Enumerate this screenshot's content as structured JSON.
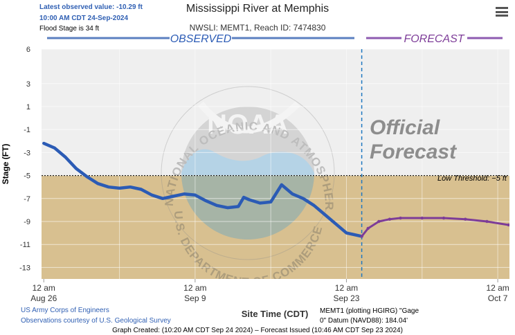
{
  "header": {
    "latest_value": "Latest observed value: -10.29 ft",
    "latest_time": "10:00 AM CDT 24-Sep-2024",
    "flood_stage": "Flood Stage is 34 ft",
    "title": "Mississippi River at Memphis",
    "subtitle": "NWSLI: MEMT1, Reach ID: 7474830"
  },
  "labels": {
    "observed": "OBSERVED",
    "forecast": "FORECAST",
    "official_forecast_1": "Official",
    "official_forecast_2": "Forecast",
    "low_threshold": "Low Threshold: −5 ft",
    "noaa": "NOAA",
    "noaa_ring_top": "NATIONAL OCEANIC AND ATMOSPHERIC ADMINISTRATION",
    "noaa_ring_bottom": "U.S. DEPARTMENT OF COMMERCE"
  },
  "footer": {
    "credit1": "US Army Corps of Engineers",
    "credit2": "Observations courtesy of U.S. Geological Survey",
    "datum1": "MEMT1 (plotting HGIRG) \"Gage",
    "datum2": "0\" Datum (NAVD88): 184.04'",
    "created": "Graph Created: (10:20 AM CDT Sep 24 2024) – Forecast Issued (10:46 AM CDT Sep 23 2024)"
  },
  "colors": {
    "observed": "#2b5bb5",
    "forecast": "#7d3c98",
    "below_threshold": "#d8c090",
    "plot_bg": "#efefef",
    "divider": "#1f78c1"
  },
  "chart_data": {
    "type": "line",
    "xlabel": "Site Time (CDT)",
    "ylabel": "Stage (FT)",
    "ylim": [
      -14,
      6
    ],
    "xlim": [
      "2024-08-25T19:00",
      "2024-10-08T02:00"
    ],
    "yticks": [
      6,
      3,
      1,
      -1,
      -3,
      -5,
      -7,
      -9,
      -11,
      -13
    ],
    "xticks": [
      {
        "at": "2024-08-26T00:00",
        "line1": "12 am",
        "line2": "Aug 26"
      },
      {
        "at": "2024-09-09T00:00",
        "line1": "12 am",
        "line2": "Sep 9"
      },
      {
        "at": "2024-09-23T00:00",
        "line1": "12 am",
        "line2": "Sep 23"
      },
      {
        "at": "2024-10-07T00:00",
        "line1": "12 am",
        "line2": "Oct 7"
      }
    ],
    "low_threshold": -5,
    "forecast_issued": "2024-09-24T10:00",
    "series": [
      {
        "name": "OBSERVED",
        "points": [
          [
            "2024-08-26T00:00",
            -2.2
          ],
          [
            "2024-08-27T00:00",
            -2.6
          ],
          [
            "2024-08-28T00:00",
            -3.4
          ],
          [
            "2024-08-29T00:00",
            -4.4
          ],
          [
            "2024-08-30T00:00",
            -5.1
          ],
          [
            "2024-08-31T00:00",
            -5.7
          ],
          [
            "2024-09-01T00:00",
            -6.0
          ],
          [
            "2024-09-02T00:00",
            -6.1
          ],
          [
            "2024-09-03T00:00",
            -6.0
          ],
          [
            "2024-09-04T00:00",
            -6.2
          ],
          [
            "2024-09-05T00:00",
            -6.7
          ],
          [
            "2024-09-06T00:00",
            -7.0
          ],
          [
            "2024-09-07T00:00",
            -6.8
          ],
          [
            "2024-09-08T00:00",
            -6.6
          ],
          [
            "2024-09-09T00:00",
            -6.7
          ],
          [
            "2024-09-10T00:00",
            -7.2
          ],
          [
            "2024-09-11T00:00",
            -7.6
          ],
          [
            "2024-09-12T00:00",
            -7.8
          ],
          [
            "2024-09-13T00:00",
            -7.7
          ],
          [
            "2024-09-13T12:00",
            -6.9
          ],
          [
            "2024-09-14T00:00",
            -7.1
          ],
          [
            "2024-09-15T00:00",
            -7.4
          ],
          [
            "2024-09-16T00:00",
            -7.3
          ],
          [
            "2024-09-17T00:00",
            -5.8
          ],
          [
            "2024-09-18T00:00",
            -6.6
          ],
          [
            "2024-09-19T00:00",
            -7.0
          ],
          [
            "2024-09-20T00:00",
            -7.6
          ],
          [
            "2024-09-21T00:00",
            -8.4
          ],
          [
            "2024-09-22T00:00",
            -9.2
          ],
          [
            "2024-09-23T00:00",
            -10.0
          ],
          [
            "2024-09-24T10:00",
            -10.29
          ]
        ]
      },
      {
        "name": "FORECAST",
        "points": [
          [
            "2024-09-24T10:00",
            -10.29
          ],
          [
            "2024-09-25T00:00",
            -9.6
          ],
          [
            "2024-09-26T00:00",
            -9.0
          ],
          [
            "2024-09-27T00:00",
            -8.8
          ],
          [
            "2024-09-28T00:00",
            -8.7
          ],
          [
            "2024-09-30T00:00",
            -8.7
          ],
          [
            "2024-10-02T00:00",
            -8.7
          ],
          [
            "2024-10-04T00:00",
            -8.8
          ],
          [
            "2024-10-06T00:00",
            -9.0
          ],
          [
            "2024-10-08T00:00",
            -9.3
          ]
        ]
      }
    ]
  }
}
